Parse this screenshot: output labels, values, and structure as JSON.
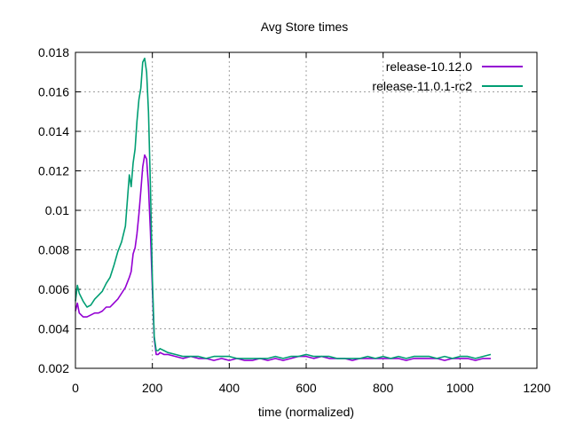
{
  "chart_data": {
    "type": "line",
    "title": "Avg Store times",
    "xlabel": "time (normalized)",
    "ylabel": "",
    "xlim": [
      0,
      1200
    ],
    "ylim": [
      0.002,
      0.018
    ],
    "xticks": [
      0,
      200,
      400,
      600,
      800,
      1000,
      1200
    ],
    "xtick_labels": [
      "0",
      "200",
      "400",
      "600",
      "800",
      "1000",
      "1200"
    ],
    "yticks": [
      0.002,
      0.004,
      0.006,
      0.008,
      0.01,
      0.012,
      0.014,
      0.016,
      0.018
    ],
    "ytick_labels": [
      "0.002",
      "0.004",
      "0.006",
      "0.008",
      "0.01",
      "0.012",
      "0.014",
      "0.016",
      "0.018"
    ],
    "grid": true,
    "legend_position": "top-right",
    "series": [
      {
        "name": "release-10.12.0",
        "color": "#9400d3",
        "x": [
          0,
          5,
          10,
          20,
          30,
          40,
          50,
          60,
          70,
          80,
          90,
          100,
          110,
          120,
          130,
          140,
          145,
          150,
          155,
          160,
          165,
          170,
          175,
          180,
          185,
          190,
          195,
          200,
          205,
          210,
          215,
          220,
          230,
          240,
          260,
          280,
          300,
          320,
          340,
          360,
          380,
          400,
          420,
          440,
          460,
          480,
          500,
          520,
          540,
          560,
          580,
          600,
          620,
          640,
          660,
          680,
          700,
          720,
          740,
          760,
          780,
          800,
          820,
          840,
          860,
          880,
          900,
          920,
          940,
          960,
          980,
          1000,
          1020,
          1040,
          1060,
          1080
        ],
        "values": [
          0.0049,
          0.0053,
          0.0048,
          0.0046,
          0.0046,
          0.0047,
          0.0048,
          0.0048,
          0.0049,
          0.0051,
          0.0051,
          0.0053,
          0.0055,
          0.0058,
          0.0061,
          0.0066,
          0.0069,
          0.0078,
          0.0081,
          0.0088,
          0.0098,
          0.011,
          0.0122,
          0.0128,
          0.0126,
          0.0112,
          0.0089,
          0.006,
          0.0035,
          0.0027,
          0.0027,
          0.0028,
          0.0027,
          0.0027,
          0.0026,
          0.0025,
          0.0026,
          0.0025,
          0.0025,
          0.0024,
          0.0025,
          0.0024,
          0.0025,
          0.0024,
          0.0024,
          0.0025,
          0.0024,
          0.0025,
          0.0024,
          0.0025,
          0.0026,
          0.0026,
          0.0025,
          0.0026,
          0.0025,
          0.0025,
          0.0025,
          0.0024,
          0.0025,
          0.0025,
          0.0025,
          0.0025,
          0.0025,
          0.0025,
          0.0024,
          0.0025,
          0.0025,
          0.0025,
          0.0025,
          0.0024,
          0.0025,
          0.0025,
          0.0025,
          0.0024,
          0.0025,
          0.0025
        ]
      },
      {
        "name": "release-11.0.1-rc2",
        "color": "#009e73",
        "x": [
          0,
          5,
          10,
          20,
          30,
          40,
          50,
          60,
          70,
          80,
          90,
          100,
          110,
          120,
          130,
          140,
          145,
          150,
          155,
          160,
          165,
          170,
          175,
          180,
          185,
          190,
          195,
          200,
          205,
          210,
          215,
          220,
          230,
          240,
          260,
          280,
          300,
          320,
          340,
          360,
          380,
          400,
          420,
          440,
          460,
          480,
          500,
          520,
          540,
          560,
          580,
          600,
          620,
          640,
          660,
          680,
          700,
          720,
          740,
          760,
          780,
          800,
          820,
          840,
          860,
          880,
          900,
          920,
          940,
          960,
          980,
          1000,
          1020,
          1040,
          1060,
          1080
        ],
        "values": [
          0.0054,
          0.0062,
          0.0058,
          0.0054,
          0.0051,
          0.0052,
          0.0055,
          0.0057,
          0.0059,
          0.0063,
          0.0066,
          0.0072,
          0.0079,
          0.0084,
          0.0092,
          0.0118,
          0.0112,
          0.0124,
          0.0131,
          0.0145,
          0.0156,
          0.0162,
          0.0175,
          0.0177,
          0.017,
          0.015,
          0.0112,
          0.0065,
          0.0036,
          0.0029,
          0.0029,
          0.003,
          0.0029,
          0.0028,
          0.0027,
          0.0026,
          0.0026,
          0.0026,
          0.0025,
          0.0026,
          0.0026,
          0.0026,
          0.0025,
          0.0025,
          0.0025,
          0.0025,
          0.0025,
          0.0026,
          0.0025,
          0.0026,
          0.0026,
          0.0027,
          0.0026,
          0.0026,
          0.0026,
          0.0025,
          0.0025,
          0.0025,
          0.0025,
          0.0026,
          0.0025,
          0.0026,
          0.0025,
          0.0026,
          0.0025,
          0.0026,
          0.0026,
          0.0026,
          0.0025,
          0.0026,
          0.0025,
          0.0026,
          0.0026,
          0.0025,
          0.0026,
          0.0027
        ]
      }
    ]
  }
}
